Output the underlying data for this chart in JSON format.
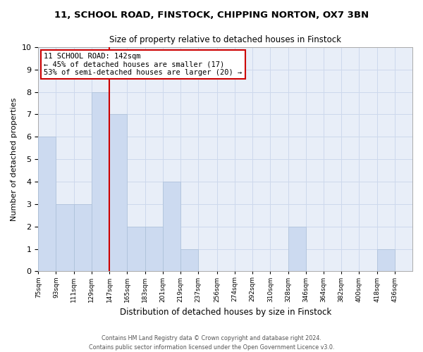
{
  "title1": "11, SCHOOL ROAD, FINSTOCK, CHIPPING NORTON, OX7 3BN",
  "title2": "Size of property relative to detached houses in Finstock",
  "xlabel": "Distribution of detached houses by size in Finstock",
  "ylabel": "Number of detached properties",
  "bins": [
    "75sqm",
    "93sqm",
    "111sqm",
    "129sqm",
    "147sqm",
    "165sqm",
    "183sqm",
    "201sqm",
    "219sqm",
    "237sqm",
    "256sqm",
    "274sqm",
    "292sqm",
    "310sqm",
    "328sqm",
    "346sqm",
    "364sqm",
    "382sqm",
    "400sqm",
    "418sqm",
    "436sqm"
  ],
  "bin_edges": [
    75,
    93,
    111,
    129,
    147,
    165,
    183,
    201,
    219,
    237,
    256,
    274,
    292,
    310,
    328,
    346,
    364,
    382,
    400,
    418,
    436
  ],
  "counts": [
    6,
    3,
    3,
    8,
    7,
    2,
    2,
    4,
    1,
    0,
    0,
    0,
    0,
    0,
    2,
    0,
    0,
    0,
    0,
    1,
    0
  ],
  "bar_color": "#ccdaf0",
  "bar_edge_color": "#aabfd8",
  "vline_color": "#cc0000",
  "vline_x": 147,
  "annotation_line1": "11 SCHOOL ROAD: 142sqm",
  "annotation_line2": "← 45% of detached houses are smaller (17)",
  "annotation_line3": "53% of semi-detached houses are larger (20) →",
  "annotation_box_color": "#ffffff",
  "annotation_box_edge": "#cc0000",
  "ylim": [
    0,
    10
  ],
  "yticks": [
    0,
    1,
    2,
    3,
    4,
    5,
    6,
    7,
    8,
    9,
    10
  ],
  "grid_color": "#cdd8ec",
  "bg_color": "#e8eef8",
  "footer1": "Contains HM Land Registry data © Crown copyright and database right 2024.",
  "footer2": "Contains public sector information licensed under the Open Government Licence v3.0."
}
